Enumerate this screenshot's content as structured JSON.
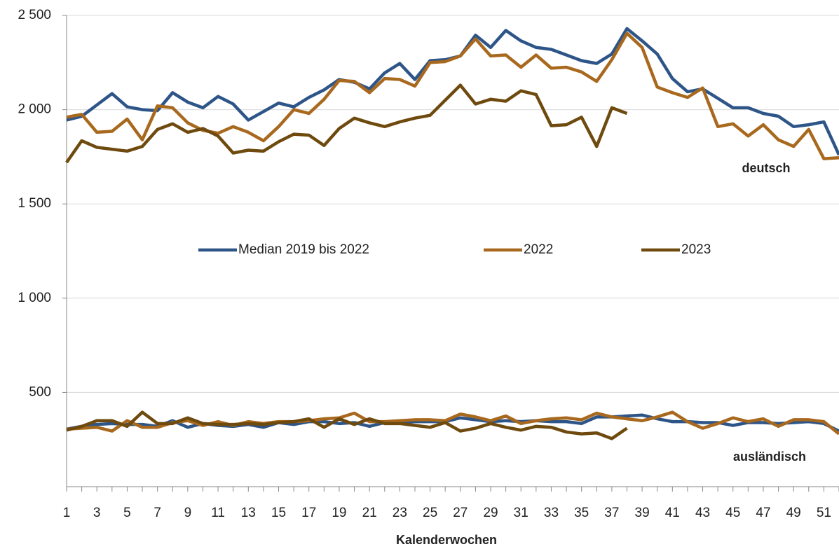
{
  "chart_data": {
    "type": "line",
    "x_label": "Kalenderwochen",
    "annotations": {
      "deutsch": "deutsch",
      "auslaendisch": "ausländisch"
    },
    "x": [
      1,
      2,
      3,
      4,
      5,
      6,
      7,
      8,
      9,
      10,
      11,
      12,
      13,
      14,
      15,
      16,
      17,
      18,
      19,
      20,
      21,
      22,
      23,
      24,
      25,
      26,
      27,
      28,
      29,
      30,
      31,
      32,
      33,
      34,
      35,
      36,
      37,
      38,
      39,
      40,
      41,
      42,
      43,
      44,
      45,
      46,
      47,
      48,
      49,
      50,
      51,
      52
    ],
    "xlim": [
      1,
      52
    ],
    "xticks": [
      1,
      3,
      5,
      7,
      9,
      11,
      13,
      15,
      17,
      19,
      21,
      23,
      25,
      27,
      29,
      31,
      33,
      35,
      37,
      39,
      41,
      43,
      45,
      47,
      49,
      51
    ],
    "ylim": [
      0,
      2500
    ],
    "yticks": [
      500,
      {
        "value": 1000,
        "label": "1 000"
      },
      {
        "value": 1500,
        "label": "1 500"
      },
      {
        "value": 2000,
        "label": "2 000"
      },
      {
        "value": 2500,
        "label": "2 500"
      }
    ],
    "grid": true,
    "series": [
      {
        "name": "Median 2019 bis 2022",
        "color": "#2e5588",
        "deutsch": [
          1945,
          1965,
          2025,
          2085,
          2015,
          2000,
          1995,
          2090,
          2040,
          2010,
          2070,
          2030,
          1945,
          1990,
          2035,
          2015,
          2065,
          2105,
          2160,
          2145,
          2110,
          2195,
          2245,
          2160,
          2260,
          2265,
          2285,
          2395,
          2330,
          2420,
          2365,
          2330,
          2320,
          2290,
          2260,
          2245,
          2295,
          2430,
          2365,
          2295,
          2165,
          2095,
          2110,
          2060,
          2010,
          2010,
          1980,
          1965,
          1910,
          1920,
          1935,
          1760
        ],
        "auslaendisch": [
          305,
          320,
          330,
          335,
          330,
          330,
          320,
          350,
          315,
          335,
          325,
          320,
          330,
          315,
          340,
          330,
          345,
          345,
          335,
          340,
          320,
          340,
          340,
          345,
          345,
          345,
          365,
          355,
          345,
          350,
          345,
          350,
          345,
          345,
          335,
          370,
          370,
          375,
          380,
          360,
          345,
          345,
          340,
          340,
          325,
          340,
          340,
          335,
          340,
          345,
          335,
          295
        ]
      },
      {
        "name": "2022",
        "color": "#a8691e",
        "deutsch": [
          1960,
          1975,
          1880,
          1885,
          1950,
          1840,
          2020,
          2010,
          1930,
          1890,
          1875,
          1910,
          1880,
          1835,
          1910,
          2000,
          1980,
          2055,
          2155,
          2150,
          2090,
          2165,
          2160,
          2125,
          2250,
          2255,
          2285,
          2375,
          2285,
          2290,
          2225,
          2290,
          2220,
          2225,
          2200,
          2150,
          2265,
          2405,
          2330,
          2120,
          2090,
          2065,
          2115,
          1910,
          1925,
          1860,
          1920,
          1840,
          1805,
          1895,
          1740,
          1745
        ],
        "auslaendisch": [
          305,
          310,
          315,
          295,
          350,
          315,
          315,
          340,
          350,
          325,
          345,
          325,
          345,
          335,
          345,
          345,
          350,
          360,
          365,
          390,
          345,
          345,
          350,
          355,
          355,
          350,
          385,
          370,
          350,
          375,
          335,
          350,
          360,
          365,
          355,
          390,
          370,
          360,
          350,
          370,
          395,
          345,
          310,
          335,
          365,
          345,
          360,
          320,
          355,
          355,
          345,
          280
        ]
      },
      {
        "name": "2023",
        "color": "#6e4a0e",
        "deutsch": [
          1720,
          1835,
          1800,
          1790,
          1780,
          1805,
          1895,
          1925,
          1880,
          1900,
          1860,
          1770,
          1785,
          1780,
          1830,
          1870,
          1865,
          1810,
          1900,
          1955,
          1930,
          1910,
          1935,
          1955,
          1970,
          2050,
          2130,
          2030,
          2055,
          2045,
          2100,
          2080,
          1915,
          1920,
          1960,
          1805,
          2010,
          1980,
          null,
          null,
          null,
          null,
          null,
          null,
          null,
          null,
          null,
          null,
          null,
          null,
          null,
          null
        ],
        "auslaendisch": [
          300,
          320,
          350,
          350,
          320,
          395,
          335,
          335,
          365,
          335,
          330,
          330,
          335,
          330,
          340,
          345,
          360,
          315,
          360,
          330,
          360,
          335,
          335,
          325,
          315,
          340,
          295,
          310,
          335,
          315,
          300,
          320,
          315,
          290,
          280,
          285,
          255,
          310,
          null,
          null,
          null,
          null,
          null,
          null,
          null,
          null,
          null,
          null,
          null,
          null,
          null,
          null
        ]
      }
    ]
  }
}
